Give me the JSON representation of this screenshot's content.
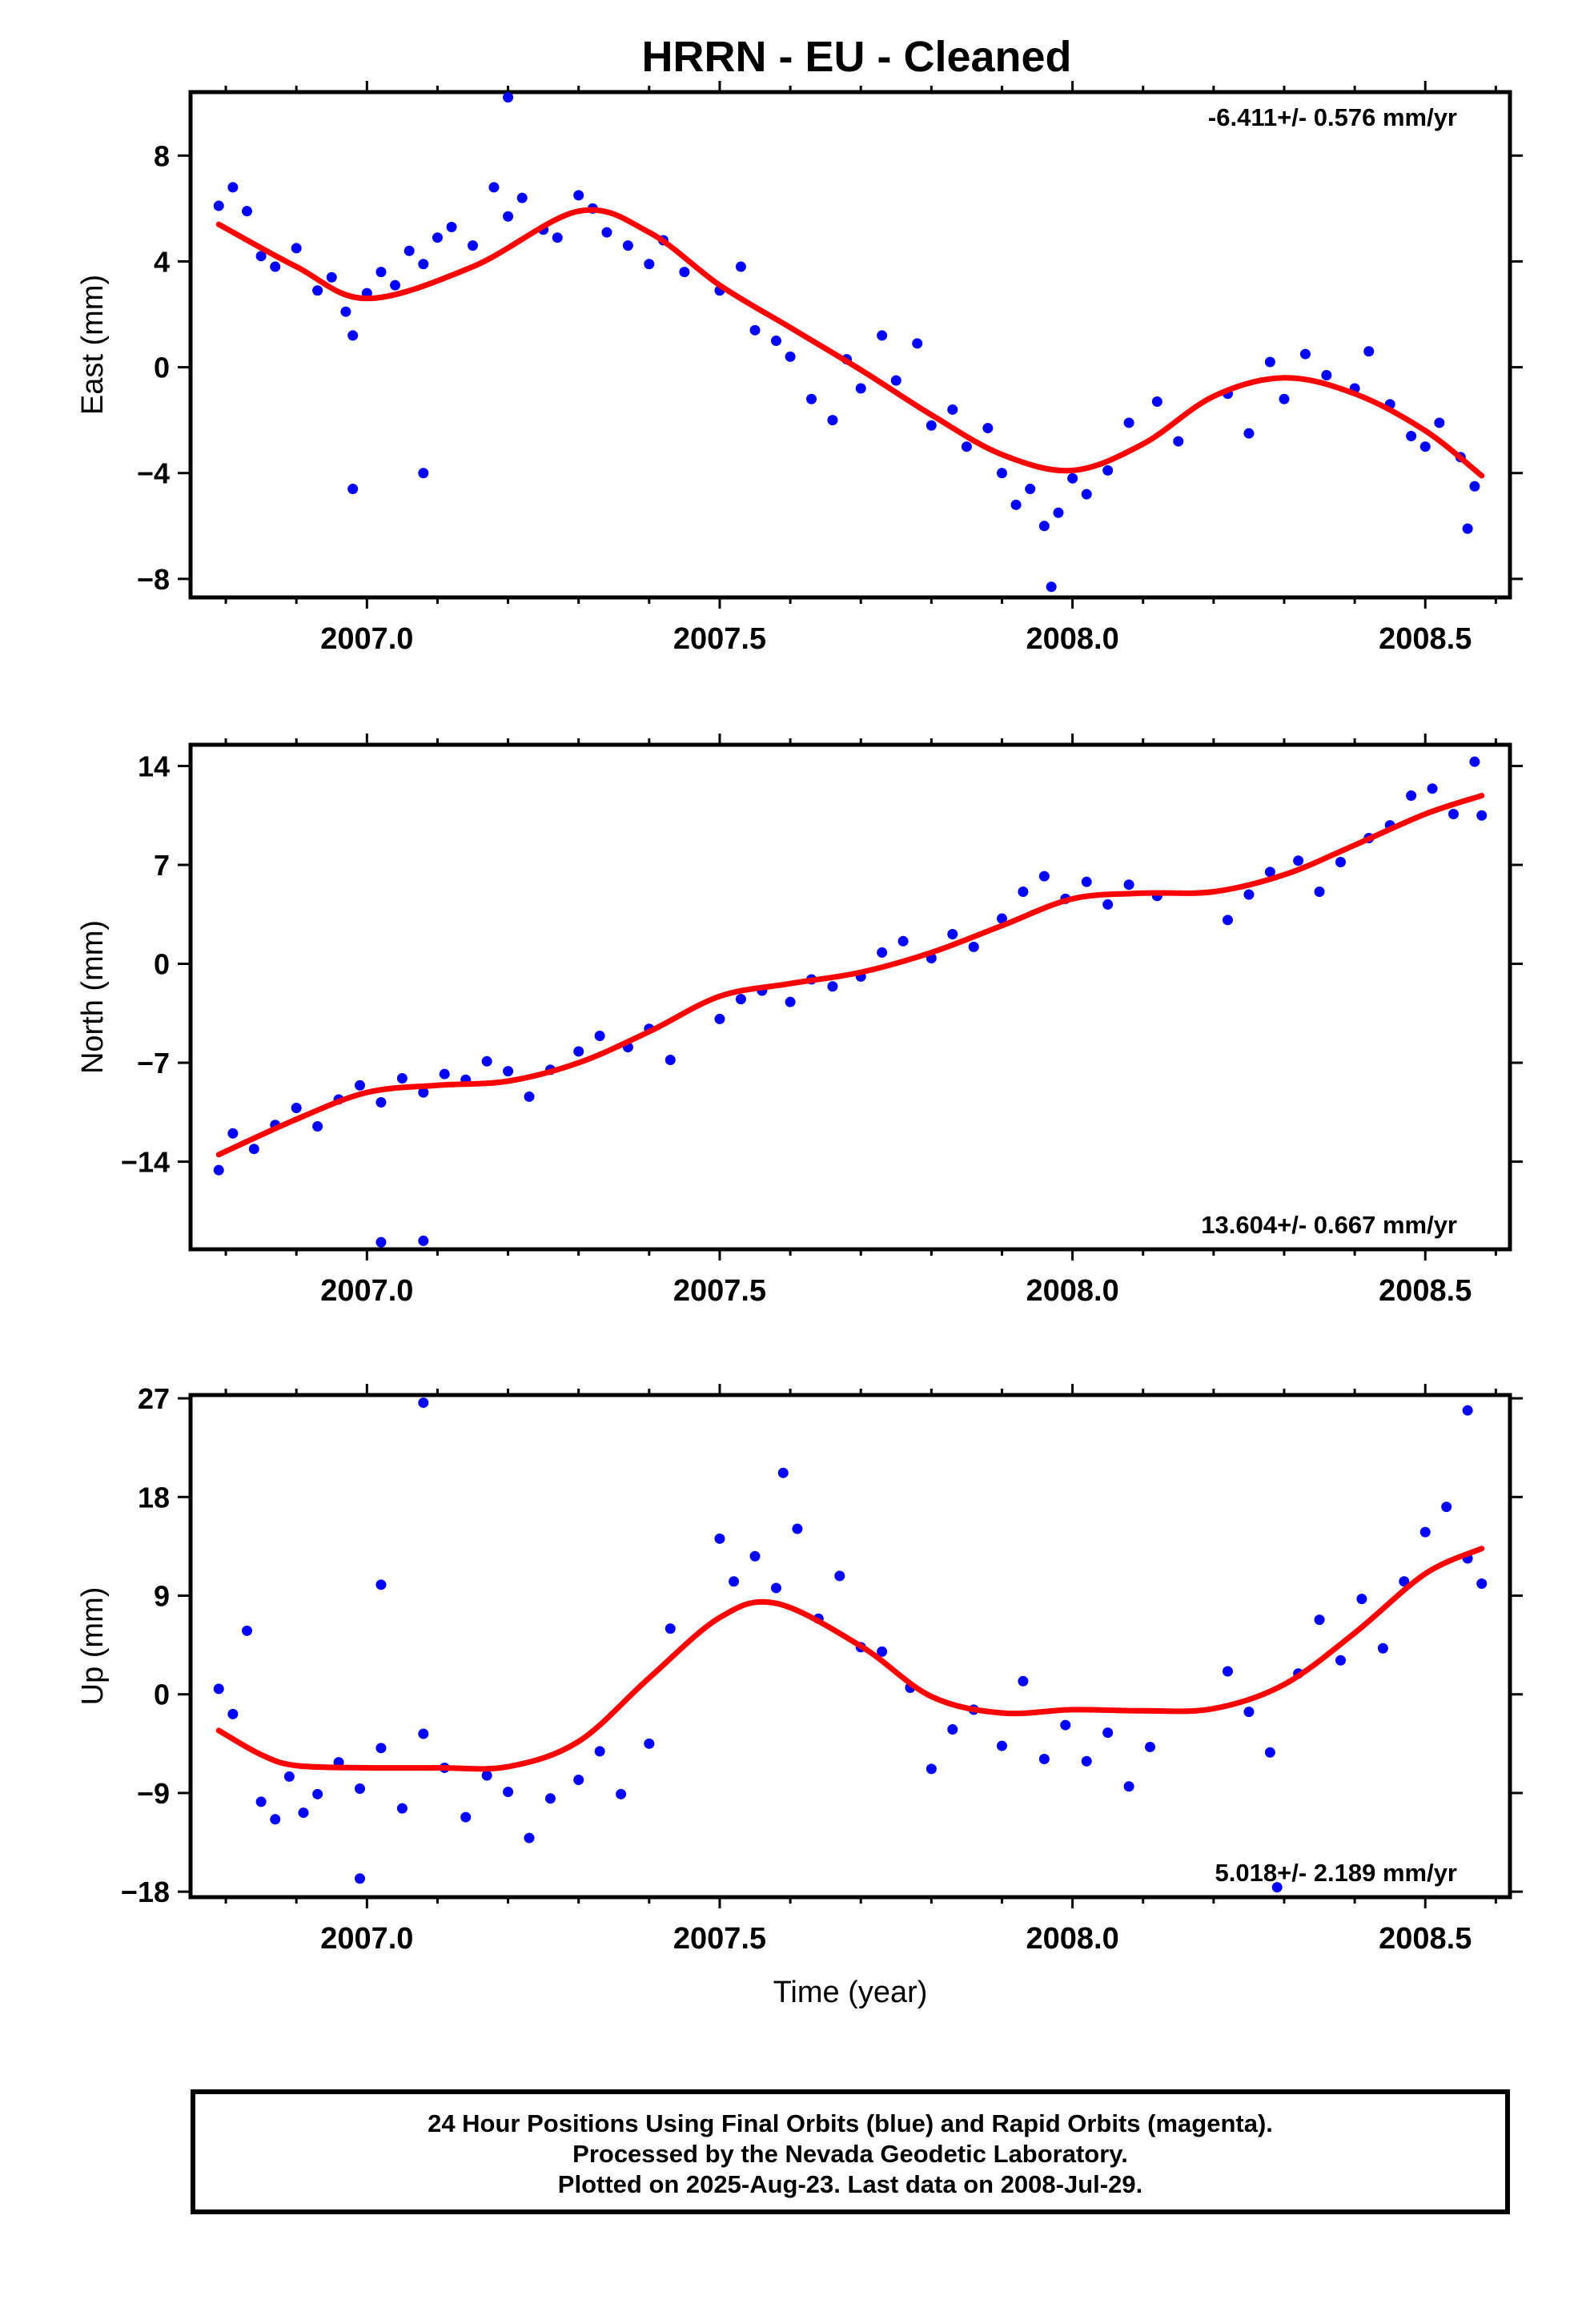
{
  "title": "HRRN  - EU - Cleaned",
  "x_axis_label": "Time (year)",
  "footer": {
    "line1": "24 Hour Positions Using Final Orbits (blue) and Rapid Orbits (magenta).",
    "line2": "Processed by the Nevada Geodetic Laboratory.",
    "line3": "Plotted on 2025-Aug-23. Last data on 2008-Jul-29."
  },
  "colors": {
    "data_points": "#0000ff",
    "fit_line": "#ff0000",
    "frame": "#000000"
  },
  "chart_data": [
    {
      "type": "scatter",
      "ylabel": "East (mm)",
      "rate_label": "-6.411+/- 0.576 mm/yr",
      "xlim": [
        2006.75,
        2008.62
      ],
      "ylim": [
        -8.7,
        10.4
      ],
      "x_ticks": [
        2007.0,
        2007.5,
        2008.0,
        2008.5
      ],
      "x_tick_labels": [
        "2007.0",
        "2007.5",
        "2008.0",
        "2008.5"
      ],
      "y_ticks": [
        -8,
        -4,
        0,
        4,
        8
      ],
      "y_tick_labels": [
        "−8",
        "−4",
        "0",
        "4",
        "8"
      ],
      "series": [
        {
          "role": "data",
          "x": [
            2006.79,
            2006.81,
            2006.83,
            2006.85,
            2006.87,
            2006.9,
            2006.93,
            2006.95,
            2006.97,
            2006.98,
            2007.0,
            2007.02,
            2007.04,
            2007.06,
            2007.08,
            2007.1,
            2007.12,
            2007.15,
            2007.18,
            2007.2,
            2007.22,
            2007.25,
            2007.27,
            2007.3,
            2007.32,
            2007.34,
            2007.37,
            2007.4,
            2007.42,
            2007.45,
            2007.5,
            2007.53,
            2007.55,
            2007.58,
            2007.6,
            2007.63,
            2007.66,
            2007.68,
            2007.7,
            2007.73,
            2007.75,
            2007.78,
            2007.8,
            2007.83,
            2007.85,
            2007.88,
            2007.9,
            2007.92,
            2007.94,
            2007.96,
            2007.98,
            2008.0,
            2008.02,
            2008.05,
            2008.08,
            2008.12,
            2008.15,
            2008.22,
            2008.25,
            2008.28,
            2008.3,
            2008.33,
            2008.36,
            2008.4,
            2008.42,
            2008.45,
            2008.48,
            2008.5,
            2008.52,
            2008.55,
            2008.57,
            2006.98,
            2007.08,
            2007.2,
            2007.97,
            2008.56
          ],
          "y": [
            6.1,
            6.8,
            5.9,
            4.2,
            3.8,
            4.5,
            2.9,
            3.4,
            2.1,
            1.2,
            2.8,
            3.6,
            3.1,
            4.4,
            3.9,
            4.9,
            5.3,
            4.6,
            6.8,
            5.7,
            6.4,
            5.2,
            4.9,
            6.5,
            6.0,
            5.1,
            4.6,
            3.9,
            4.8,
            3.6,
            2.9,
            3.8,
            1.4,
            1.0,
            0.4,
            -1.2,
            -2.0,
            0.3,
            -0.8,
            1.2,
            -0.5,
            0.9,
            -2.2,
            -1.6,
            -3.0,
            -2.3,
            -4.0,
            -5.2,
            -4.6,
            -6.0,
            -5.5,
            -4.2,
            -4.8,
            -3.9,
            -2.1,
            -1.3,
            -2.8,
            -1.0,
            -2.5,
            0.2,
            -1.2,
            0.5,
            -0.3,
            -0.8,
            0.6,
            -1.4,
            -2.6,
            -3.0,
            -2.1,
            -3.4,
            -4.5,
            -4.6,
            -4.0,
            10.2,
            -8.3,
            -6.1
          ]
        },
        {
          "role": "fit",
          "x": [
            2006.79,
            2006.9,
            2007.0,
            2007.15,
            2007.3,
            2007.4,
            2007.5,
            2007.6,
            2007.7,
            2007.8,
            2007.9,
            2008.0,
            2008.1,
            2008.2,
            2008.3,
            2008.4,
            2008.5,
            2008.58
          ],
          "y": [
            5.4,
            3.8,
            2.6,
            3.8,
            5.9,
            5.1,
            3.1,
            1.5,
            -0.1,
            -1.8,
            -3.3,
            -3.9,
            -2.9,
            -1.1,
            -0.4,
            -1.0,
            -2.4,
            -4.1
          ]
        }
      ]
    },
    {
      "type": "scatter",
      "ylabel": "North (mm)",
      "rate_label": "13.604+/- 0.667 mm/yr",
      "xlim": [
        2006.75,
        2008.62
      ],
      "ylim": [
        -20.2,
        15.5
      ],
      "x_ticks": [
        2007.0,
        2007.5,
        2008.0,
        2008.5
      ],
      "x_tick_labels": [
        "2007.0",
        "2007.5",
        "2008.0",
        "2008.5"
      ],
      "y_ticks": [
        -14,
        -7,
        0,
        7,
        14
      ],
      "y_tick_labels": [
        "−14",
        "−7",
        "0",
        "7",
        "14"
      ],
      "series": [
        {
          "role": "data",
          "x": [
            2006.79,
            2006.81,
            2006.84,
            2006.87,
            2006.9,
            2006.93,
            2006.96,
            2006.99,
            2007.02,
            2007.05,
            2007.08,
            2007.11,
            2007.14,
            2007.17,
            2007.2,
            2007.23,
            2007.26,
            2007.3,
            2007.33,
            2007.37,
            2007.4,
            2007.43,
            2007.5,
            2007.53,
            2007.56,
            2007.6,
            2007.63,
            2007.66,
            2007.7,
            2007.73,
            2007.76,
            2007.8,
            2007.83,
            2007.86,
            2007.9,
            2007.93,
            2007.96,
            2007.99,
            2008.02,
            2008.05,
            2008.08,
            2008.12,
            2008.22,
            2008.25,
            2008.28,
            2008.32,
            2008.35,
            2008.38,
            2008.42,
            2008.45,
            2008.48,
            2008.51,
            2008.54,
            2008.57,
            2007.02,
            2007.08,
            2008.58
          ],
          "y": [
            -14.6,
            -12.0,
            -13.1,
            -11.4,
            -10.2,
            -11.5,
            -9.6,
            -8.6,
            -9.8,
            -8.1,
            -9.1,
            -7.8,
            -8.2,
            -6.9,
            -7.6,
            -9.4,
            -7.5,
            -6.2,
            -5.1,
            -5.9,
            -4.6,
            -6.8,
            -3.9,
            -2.5,
            -1.9,
            -2.7,
            -1.1,
            -1.6,
            -0.9,
            0.8,
            1.6,
            0.4,
            2.1,
            1.2,
            3.2,
            5.1,
            6.2,
            4.6,
            5.8,
            4.2,
            5.6,
            4.8,
            3.1,
            4.9,
            6.5,
            7.3,
            5.1,
            7.2,
            8.9,
            9.8,
            11.9,
            12.4,
            10.6,
            14.3,
            -19.7,
            -19.6,
            10.5
          ]
        },
        {
          "role": "fit",
          "x": [
            2006.79,
            2006.9,
            2007.0,
            2007.1,
            2007.2,
            2007.3,
            2007.4,
            2007.5,
            2007.6,
            2007.7,
            2007.8,
            2007.9,
            2008.0,
            2008.1,
            2008.2,
            2008.3,
            2008.4,
            2008.5,
            2008.58
          ],
          "y": [
            -13.5,
            -11.0,
            -9.1,
            -8.6,
            -8.3,
            -7.0,
            -4.8,
            -2.3,
            -1.4,
            -0.6,
            0.8,
            2.7,
            4.6,
            5.0,
            5.1,
            6.3,
            8.4,
            10.6,
            11.9
          ]
        }
      ]
    },
    {
      "type": "scatter",
      "ylabel": "Up (mm)",
      "rate_label": "5.018+/- 2.189 mm/yr",
      "xlim": [
        2006.75,
        2008.62
      ],
      "ylim": [
        -18.5,
        27.3
      ],
      "x_ticks": [
        2007.0,
        2007.5,
        2008.0,
        2008.5
      ],
      "x_tick_labels": [
        "2007.0",
        "2007.5",
        "2008.0",
        "2008.5"
      ],
      "y_ticks": [
        -18,
        -9,
        0,
        9,
        18,
        27
      ],
      "y_tick_labels": [
        "−18",
        "−9",
        "0",
        "9",
        "18",
        "27"
      ],
      "series": [
        {
          "role": "data",
          "x": [
            2006.79,
            2006.81,
            2006.83,
            2006.85,
            2006.87,
            2006.89,
            2006.91,
            2006.93,
            2006.96,
            2006.99,
            2007.02,
            2007.05,
            2007.08,
            2007.11,
            2007.14,
            2007.17,
            2007.2,
            2007.23,
            2007.26,
            2007.3,
            2007.33,
            2007.36,
            2007.4,
            2007.43,
            2007.5,
            2007.52,
            2007.55,
            2007.58,
            2007.61,
            2007.64,
            2007.67,
            2007.7,
            2007.73,
            2007.77,
            2007.8,
            2007.83,
            2007.86,
            2007.9,
            2007.93,
            2007.96,
            2007.99,
            2008.02,
            2008.05,
            2008.08,
            2008.11,
            2008.22,
            2008.25,
            2008.28,
            2008.32,
            2008.35,
            2008.38,
            2008.41,
            2008.44,
            2008.47,
            2008.5,
            2008.53,
            2008.56,
            2008.58,
            2006.99,
            2007.02,
            2007.08,
            2007.59,
            2008.56,
            2008.29
          ],
          "y": [
            0.5,
            -1.8,
            5.8,
            -9.8,
            -11.4,
            -7.5,
            -10.8,
            -9.1,
            -6.2,
            -8.6,
            -4.9,
            -10.4,
            -3.6,
            -6.7,
            -11.2,
            -7.4,
            -8.9,
            -13.1,
            -9.5,
            -7.8,
            -5.2,
            -9.1,
            -4.5,
            6.0,
            14.2,
            10.3,
            12.6,
            9.7,
            15.1,
            6.9,
            10.8,
            4.3,
            3.9,
            0.6,
            -6.8,
            -3.2,
            -1.4,
            -4.7,
            1.2,
            -5.9,
            -2.8,
            -6.1,
            -3.5,
            -8.4,
            -4.8,
            2.1,
            -1.6,
            -5.3,
            1.9,
            6.8,
            3.1,
            8.7,
            4.2,
            10.3,
            14.8,
            17.1,
            12.4,
            10.1,
            -16.8,
            10.0,
            26.6,
            20.2,
            25.9,
            -17.6
          ]
        },
        {
          "role": "fit",
          "x": [
            2006.79,
            2006.85,
            2006.9,
            2007.0,
            2007.1,
            2007.2,
            2007.3,
            2007.4,
            2007.5,
            2007.58,
            2007.7,
            2007.8,
            2007.9,
            2008.0,
            2008.1,
            2008.2,
            2008.3,
            2008.4,
            2008.5,
            2008.58
          ],
          "y": [
            -3.3,
            -5.5,
            -6.5,
            -6.7,
            -6.7,
            -6.6,
            -4.3,
            1.5,
            7.0,
            8.3,
            4.4,
            -0.2,
            -1.7,
            -1.4,
            -1.5,
            -1.3,
            0.9,
            5.6,
            11.0,
            13.3
          ]
        }
      ]
    }
  ]
}
